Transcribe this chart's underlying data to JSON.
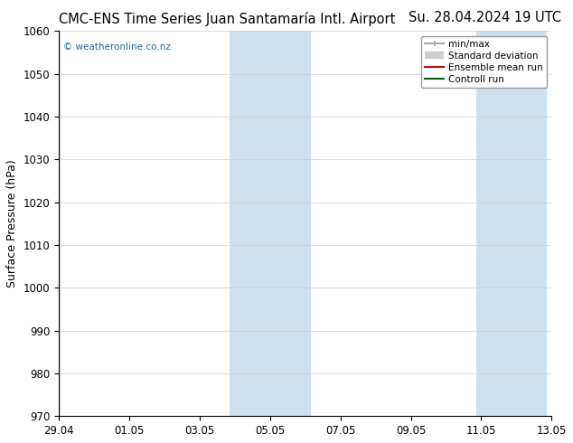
{
  "title_left": "CMC-ENS Time Series Juan Santamaría Intl. Airport",
  "title_right": "Su. 28.04.2024 19 UTC",
  "ylabel": "Surface Pressure (hPa)",
  "ylim": [
    970,
    1060
  ],
  "yticks": [
    970,
    980,
    990,
    1000,
    1010,
    1020,
    1030,
    1040,
    1050,
    1060
  ],
  "xtick_labels": [
    "29.04",
    "01.05",
    "03.05",
    "05.05",
    "07.05",
    "09.05",
    "11.05",
    "13.05"
  ],
  "xtick_positions": [
    0,
    2,
    4,
    6,
    8,
    10,
    12,
    14
  ],
  "xlim": [
    0,
    14
  ],
  "shaded_regions": [
    {
      "xmin": -0.05,
      "xmax": 0.05,
      "color": "#cde0f0"
    },
    {
      "xmin": 4.85,
      "xmax": 7.15,
      "color": "#cde0f0"
    },
    {
      "xmin": 11.85,
      "xmax": 12.85,
      "color": "#cde0f0"
    },
    {
      "xmin": 12.85,
      "xmax": 13.85,
      "color": "#cde0f0"
    }
  ],
  "watermark": "© weatheronline.co.nz",
  "watermark_color": "#1a6bb5",
  "legend_items": [
    {
      "label": "min/max",
      "color": "#aaaaaa",
      "lw": 1.5
    },
    {
      "label": "Standard deviation",
      "color": "#cccccc",
      "lw": 6
    },
    {
      "label": "Ensemble mean run",
      "color": "#cc0000",
      "lw": 1.5
    },
    {
      "label": "Controll run",
      "color": "#006600",
      "lw": 1.5
    }
  ],
  "background_color": "#ffffff",
  "plot_bg_color": "#ffffff",
  "grid_color": "#cccccc",
  "title_fontsize": 10.5,
  "axis_label_fontsize": 9,
  "tick_fontsize": 8.5,
  "legend_fontsize": 7.5,
  "fig_width": 6.34,
  "fig_height": 4.9,
  "dpi": 100
}
